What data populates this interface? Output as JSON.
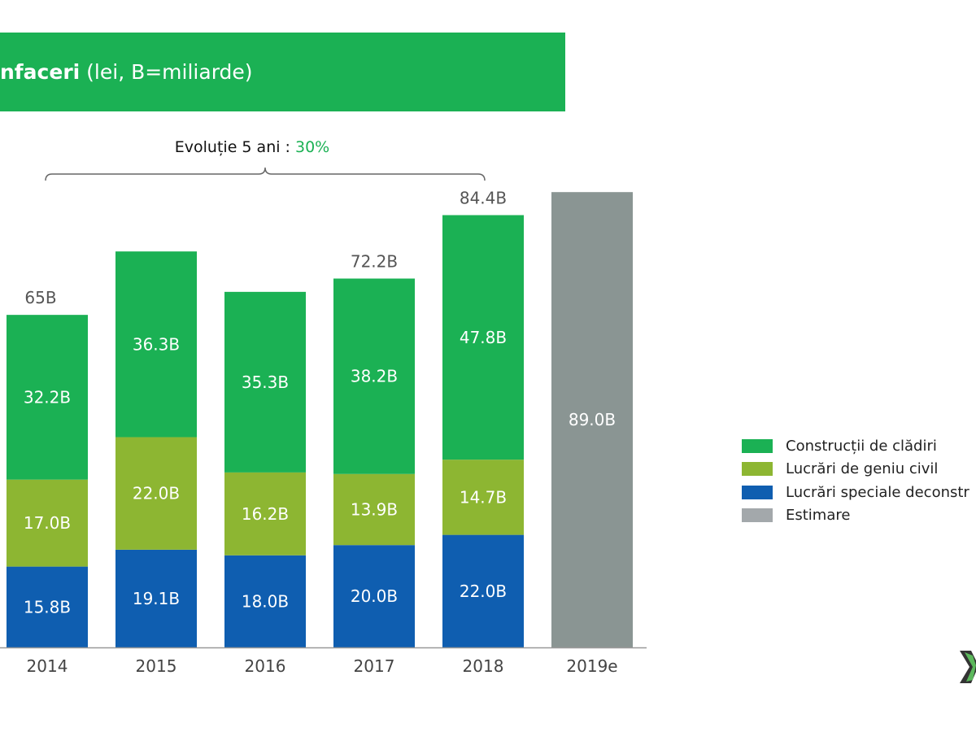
{
  "header": {
    "title_bold": "nfaceri",
    "title_rest": " (lei, B=miliarde)"
  },
  "annotation": {
    "label": "Evoluție 5 ani : ",
    "value": "30%"
  },
  "colors": {
    "accent": "#1bb154",
    "civil": "#8db632",
    "special": "#0f5eb0",
    "estimate": "#8a9593"
  },
  "chart_data": {
    "type": "bar",
    "stacked": true,
    "categories": [
      "2014",
      "2015",
      "2016",
      "2017",
      "2018",
      "2019e"
    ],
    "series": [
      {
        "name": "Lucrări speciale deconstr",
        "color": "#0f5eb0",
        "values": [
          15.8,
          19.1,
          18.0,
          20.0,
          22.0,
          null
        ],
        "labels": [
          "15.8B",
          "19.1B",
          "18.0B",
          "20.0B",
          "22.0B",
          null
        ]
      },
      {
        "name": "Lucrări de geniu civil",
        "color": "#8db632",
        "values": [
          17.0,
          22.0,
          16.2,
          13.9,
          14.7,
          null
        ],
        "labels": [
          "17.0B",
          "22.0B",
          "16.2B",
          "13.9B",
          "14.7B",
          null
        ]
      },
      {
        "name": "Construcții de clădiri",
        "color": "#1bb154",
        "values": [
          32.2,
          36.3,
          35.3,
          38.2,
          47.8,
          null
        ],
        "labels": [
          "32.2B",
          "36.3B",
          "35.3B",
          "38.2B",
          "47.8B",
          null
        ]
      },
      {
        "name": "Estimare",
        "color": "#8a9593",
        "values": [
          null,
          null,
          null,
          null,
          null,
          89.0
        ],
        "labels": [
          null,
          null,
          null,
          null,
          null,
          "89.0B"
        ]
      }
    ],
    "totals": {
      "values": [
        65,
        null,
        null,
        72.2,
        84.4,
        null
      ],
      "labels": [
        "65B",
        null,
        null,
        "72.2B",
        "84.4B",
        null
      ]
    },
    "ylim": [
      0,
      95
    ],
    "grid": false,
    "legend": "right",
    "legend_colors": [
      "#1bb154",
      "#8db632",
      "#0f5eb0",
      "#a3a8ab"
    ],
    "legend_order": [
      "Construcții de clădiri",
      "Lucrări de geniu civil",
      "Lucrări speciale deconstr",
      "Estimare"
    ]
  }
}
